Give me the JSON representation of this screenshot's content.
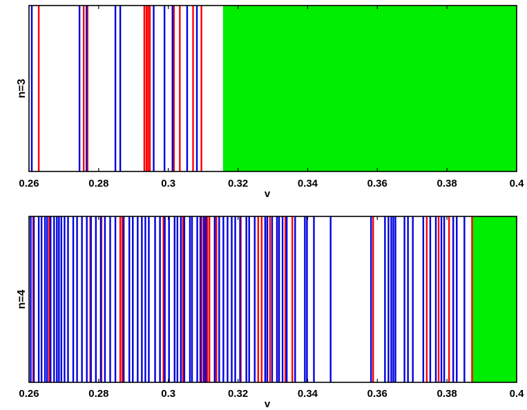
{
  "chart_data": [
    {
      "type": "bar",
      "ylabel": "n=3",
      "xlabel": "v",
      "xlim": [
        0.26,
        0.4
      ],
      "xticks": [
        "0.26",
        "0.28",
        "0.3",
        "0.32",
        "0.34",
        "0.36",
        "0.38",
        "0.4"
      ],
      "colors": {
        "blue": "#0000dd",
        "red": "#ff0000",
        "green": "#00ee00"
      },
      "blue_lines": [
        0.2608,
        0.2745,
        0.2765,
        0.2848,
        0.2862,
        0.2958,
        0.2989,
        0.3012,
        0.3054,
        0.3082
      ],
      "red_lines": [
        0.2628,
        0.2757,
        0.2768,
        0.2931,
        0.2937,
        0.2942,
        0.2947,
        0.3016,
        0.3033,
        0.3071,
        0.3095
      ],
      "green_region": [
        0.3157,
        0.4
      ]
    },
    {
      "type": "bar",
      "ylabel": "n=4",
      "xlabel": "v",
      "xlim": [
        0.26,
        0.4
      ],
      "xticks": [
        "0.26",
        "0.28",
        "0.3",
        "0.32",
        "0.34",
        "0.36",
        "0.38",
        "0.4"
      ],
      "colors": {
        "blue": "#0000dd",
        "red": "#ff0000",
        "green": "#00ee00"
      },
      "blue_lines": [
        0.2605,
        0.2614,
        0.2628,
        0.2636,
        0.2646,
        0.2652,
        0.2662,
        0.2672,
        0.268,
        0.2686,
        0.2693,
        0.2702,
        0.2712,
        0.2727,
        0.2738,
        0.2752,
        0.2766,
        0.2778,
        0.2792,
        0.2806,
        0.2818,
        0.2833,
        0.2848,
        0.2872,
        0.2888,
        0.2898,
        0.2912,
        0.2924,
        0.2934,
        0.2944,
        0.2962,
        0.2976,
        0.299,
        0.3002,
        0.3018,
        0.3026,
        0.3036,
        0.3046,
        0.3062,
        0.3068,
        0.3083,
        0.3092,
        0.3102,
        0.3108,
        0.3133,
        0.3146,
        0.3158,
        0.317,
        0.3182,
        0.3192,
        0.3206,
        0.3224,
        0.3232,
        0.3248,
        0.3278,
        0.3284,
        0.3298,
        0.3312,
        0.3318,
        0.3328,
        0.334,
        0.3364,
        0.3392,
        0.3398,
        0.3418,
        0.3466,
        0.3582,
        0.3622,
        0.3632,
        0.364,
        0.3646,
        0.3652,
        0.3678,
        0.3688,
        0.3702,
        0.3732,
        0.3752,
        0.3768,
        0.3784,
        0.3792,
        0.3818,
        0.3828,
        0.385
      ],
      "red_lines": [
        0.2612,
        0.2658,
        0.2776,
        0.2808,
        0.2862,
        0.2868,
        0.2986,
        0.3042,
        0.3096,
        0.3105,
        0.3112,
        0.3118,
        0.3138,
        0.3208,
        0.3258,
        0.3268,
        0.3284,
        0.3292,
        0.3312,
        0.3336,
        0.3356,
        0.3588,
        0.3742,
        0.3776,
        0.3806,
        0.3872
      ],
      "green_region": [
        0.3874,
        0.4
      ]
    }
  ]
}
